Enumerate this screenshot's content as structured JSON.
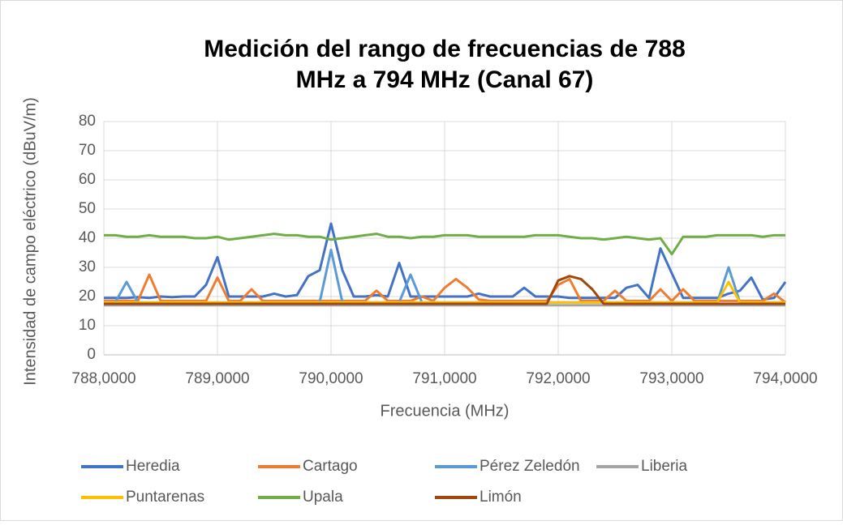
{
  "chart_data": {
    "type": "line",
    "title": [
      "Medición del rango de frecuencias de 788",
      "MHz a 794 MHz (Canal 67)"
    ],
    "xlabel": "Frecuencia (MHz)",
    "ylabel": "Intensidad de campo eléctrico (dBuV/m)",
    "xlim": [
      788,
      794
    ],
    "xticks": [
      {
        "value": 788,
        "label": "788,0000"
      },
      {
        "value": 789,
        "label": "789,0000"
      },
      {
        "value": 790,
        "label": "790,0000"
      },
      {
        "value": 791,
        "label": "791,0000"
      },
      {
        "value": 792,
        "label": "792,0000"
      },
      {
        "value": 793,
        "label": "793,0000"
      },
      {
        "value": 794,
        "label": "794,0000"
      }
    ],
    "ylim": [
      0,
      80
    ],
    "yticks": [
      0,
      10,
      20,
      30,
      40,
      50,
      60,
      70,
      80
    ],
    "grid": true,
    "legend": "bottom",
    "x": [
      788.0,
      788.1,
      788.2,
      788.3,
      788.4,
      788.5,
      788.6,
      788.7,
      788.8,
      788.9,
      789.0,
      789.1,
      789.2,
      789.3,
      789.4,
      789.5,
      789.6,
      789.7,
      789.8,
      789.9,
      790.0,
      790.1,
      790.2,
      790.3,
      790.4,
      790.5,
      790.6,
      790.7,
      790.8,
      790.9,
      791.0,
      791.1,
      791.2,
      791.3,
      791.4,
      791.5,
      791.6,
      791.7,
      791.8,
      791.9,
      792.0,
      792.1,
      792.2,
      792.3,
      792.4,
      792.5,
      792.6,
      792.7,
      792.8,
      792.9,
      793.0,
      793.1,
      793.2,
      793.3,
      793.4,
      793.5,
      793.6,
      793.7,
      793.8,
      793.9,
      794.0
    ],
    "series": [
      {
        "name": "Heredia",
        "color": "#4472c4",
        "values": [
          19.5,
          19.5,
          19.5,
          19.8,
          19.5,
          20,
          19.8,
          20,
          20,
          24,
          33.5,
          20,
          20,
          20,
          20,
          21,
          20,
          20.5,
          27,
          29,
          45,
          29,
          20,
          20,
          20.5,
          20,
          31.5,
          20,
          20,
          20,
          20,
          20,
          20,
          21,
          20,
          20,
          20,
          23,
          20,
          20,
          20,
          19.5,
          19.5,
          19.5,
          19.5,
          19.5,
          23,
          24,
          19.5,
          36.5,
          28,
          19.5,
          19.5,
          19.5,
          19.5,
          21,
          22,
          26.5,
          19,
          19.5,
          25
        ]
      },
      {
        "name": "Cartago",
        "color": "#ed7d31",
        "values": [
          18.5,
          18.5,
          18.5,
          18.5,
          27.5,
          18.5,
          18.5,
          18.5,
          18.5,
          18.5,
          26.5,
          18.5,
          18.5,
          22.5,
          18.5,
          18.5,
          18.5,
          18.5,
          18.5,
          18.5,
          18.5,
          18.5,
          18.5,
          18.5,
          22,
          18.5,
          18.5,
          18.5,
          20,
          18.5,
          23,
          26,
          23,
          19,
          18.5,
          18.5,
          18.5,
          18.5,
          18.5,
          18.5,
          24,
          26,
          18.5,
          18.5,
          18.5,
          22,
          18.5,
          18.5,
          18.5,
          22.5,
          18.5,
          22.5,
          18.5,
          18.5,
          18.5,
          18.5,
          18.5,
          18.5,
          18.5,
          21,
          18
        ]
      },
      {
        "name": "Pérez Zeledón",
        "color": "#5b9bd5",
        "values": [
          18,
          18,
          25,
          18,
          18,
          18,
          18,
          18,
          18,
          18,
          18,
          18,
          18,
          18,
          18,
          18,
          18,
          18,
          18,
          18,
          36,
          18,
          18,
          18,
          18,
          18,
          18,
          27.5,
          18,
          18,
          18,
          18,
          18,
          18,
          18,
          18,
          18,
          18,
          18,
          18,
          18,
          18,
          18,
          18,
          18,
          18,
          18,
          18,
          18,
          18,
          18,
          18,
          18,
          18,
          18,
          30,
          18,
          18,
          18,
          18,
          18
        ]
      },
      {
        "name": "Liberia",
        "color": "#a5a5a5",
        "values": [
          17,
          17,
          17,
          17,
          17,
          17,
          17,
          17,
          17,
          17,
          17,
          17,
          17,
          17,
          17,
          17,
          17,
          17,
          17,
          17,
          17,
          17,
          17,
          17,
          17,
          17,
          17,
          17,
          17,
          17,
          17,
          17,
          17,
          17,
          17,
          17,
          17,
          17,
          17,
          17,
          17,
          17,
          17,
          17,
          17,
          17,
          17,
          17,
          17,
          17,
          17,
          17,
          17,
          17,
          17,
          17,
          17,
          17,
          17,
          17,
          17
        ]
      },
      {
        "name": "Puntarenas",
        "color": "#ffc000",
        "values": [
          18,
          18,
          18,
          18,
          18,
          18,
          18,
          18,
          18,
          18,
          18,
          18,
          18,
          18,
          18,
          18,
          18,
          18,
          18,
          18,
          18,
          18,
          18,
          18,
          18,
          18,
          18,
          18,
          18,
          18,
          18,
          18,
          18,
          18,
          18,
          18,
          18,
          18,
          18,
          18,
          18,
          18,
          18,
          18,
          18,
          18,
          18,
          18,
          18,
          18,
          18,
          18,
          18,
          18,
          18,
          25,
          18,
          18,
          18,
          18,
          18
        ]
      },
      {
        "name": "Upala",
        "color": "#70ad47",
        "values": [
          41,
          41,
          40.5,
          40.5,
          41,
          40.5,
          40.5,
          40.5,
          40,
          40,
          40.5,
          39.5,
          40,
          40.5,
          41,
          41.5,
          41,
          41,
          40.5,
          40.5,
          39.5,
          40,
          40.5,
          41,
          41.5,
          40.5,
          40.5,
          40,
          40.5,
          40.5,
          41,
          41,
          41,
          40.5,
          40.5,
          40.5,
          40.5,
          40.5,
          41,
          41,
          41,
          40.5,
          40,
          40,
          39.5,
          40,
          40.5,
          40,
          39.5,
          40,
          34.5,
          40.5,
          40.5,
          40.5,
          41,
          41,
          41,
          41,
          40.5,
          41,
          41
        ]
      },
      {
        "name": "Limón",
        "color": "#9e480e",
        "values": [
          17.5,
          17.5,
          17.5,
          17.5,
          17.5,
          17.5,
          17.5,
          17.5,
          17.5,
          17.5,
          17.5,
          17.5,
          17.5,
          17.5,
          17.5,
          17.5,
          17.5,
          17.5,
          17.5,
          17.5,
          17.5,
          17.5,
          17.5,
          17.5,
          17.5,
          17.5,
          17.5,
          17.5,
          17.5,
          17.5,
          17.5,
          17.5,
          17.5,
          17.5,
          17.5,
          17.5,
          17.5,
          17.5,
          17.5,
          17.5,
          25.5,
          27,
          26,
          22.5,
          17.5,
          17.5,
          17.5,
          17.5,
          17.5,
          17.5,
          17.5,
          17.5,
          17.5,
          17.5,
          17.5,
          17.5,
          17.5,
          17.5,
          17.5,
          17.5,
          17.5
        ]
      }
    ]
  }
}
